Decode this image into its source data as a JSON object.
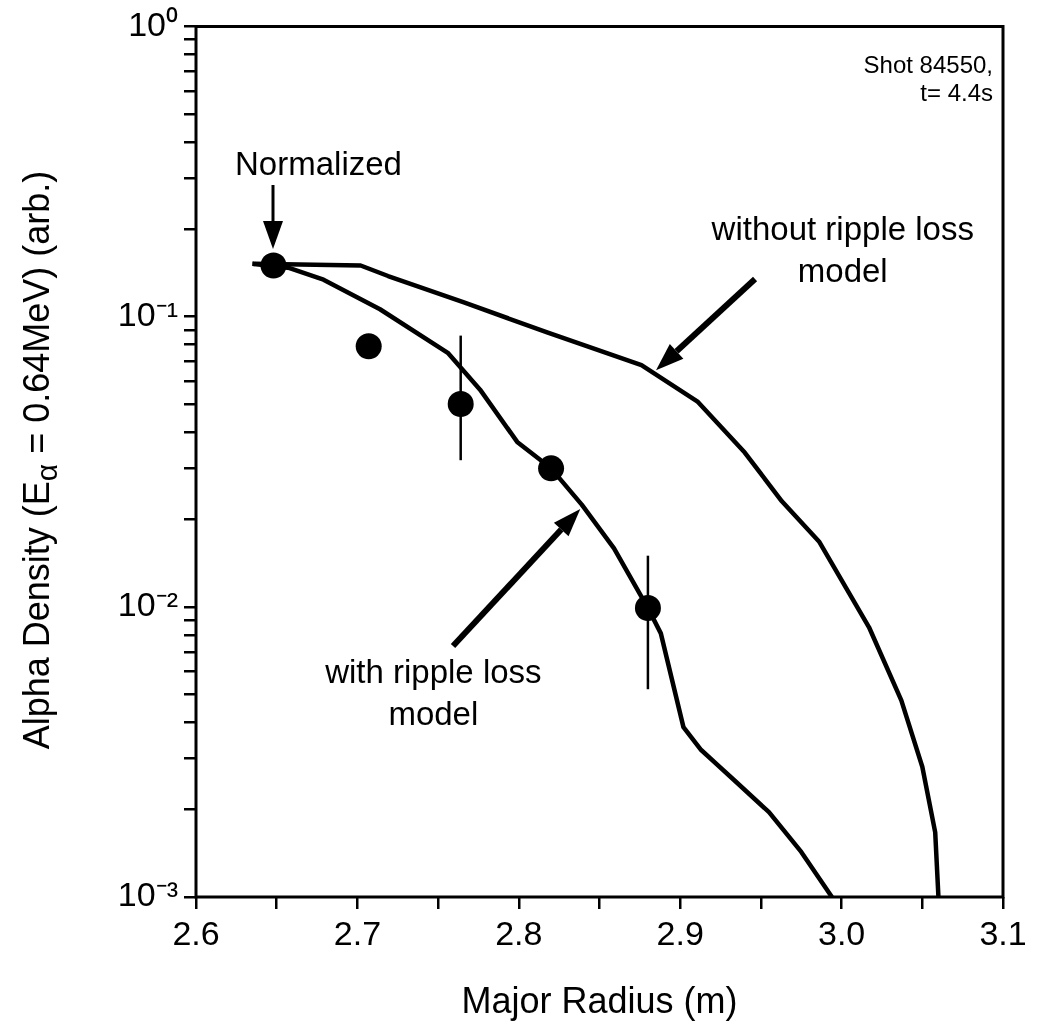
{
  "chart_data": {
    "type": "scatter",
    "xlabel": "Major Radius (m)",
    "ylabel": "Alpha Density (E$_{α}$ = 0.64MeV) (arb.)",
    "log": "y",
    "grid": false,
    "legend": false,
    "marker": "none",
    "xlim": [
      2.6,
      3.1
    ],
    "ylim": [
      0.001,
      1
    ],
    "xticks": [
      2.6,
      {
        "value": 2.65,
        "label": null
      },
      2.7,
      {
        "value": 2.75,
        "label": null
      },
      2.8,
      {
        "value": 2.85,
        "label": null
      },
      2.9,
      {
        "value": 2.95,
        "label": null
      },
      {
        "value": 3.0,
        "label": "3.0"
      },
      {
        "value": 3.05,
        "label": null
      },
      3.1
    ],
    "yticks": [
      {
        "value": 0.001,
        "label": "10⁻³"
      },
      {
        "value": 0.002,
        "label": null
      },
      {
        "value": 0.003,
        "label": null
      },
      {
        "value": 0.004,
        "label": null
      },
      {
        "value": 0.005,
        "label": null
      },
      {
        "value": 0.006,
        "label": null
      },
      {
        "value": 0.007,
        "label": null
      },
      {
        "value": 0.008,
        "label": null
      },
      {
        "value": 0.009,
        "label": null
      },
      {
        "value": 0.01,
        "label": "10⁻²"
      },
      {
        "value": 0.02,
        "label": null
      },
      {
        "value": 0.03,
        "label": null
      },
      {
        "value": 0.04,
        "label": null
      },
      {
        "value": 0.05,
        "label": null
      },
      {
        "value": 0.06,
        "label": null
      },
      {
        "value": 0.07,
        "label": null
      },
      {
        "value": 0.08,
        "label": null
      },
      {
        "value": 0.09,
        "label": null
      },
      {
        "value": 0.1,
        "label": "10⁻¹"
      },
      {
        "value": 0.2,
        "label": null
      },
      {
        "value": 0.3,
        "label": null
      },
      {
        "value": 0.4,
        "label": null
      },
      {
        "value": 0.5,
        "label": null
      },
      {
        "value": 0.6,
        "label": null
      },
      {
        "value": 0.7,
        "label": null
      },
      {
        "value": 0.8,
        "label": null
      },
      {
        "value": 0.9,
        "label": null
      },
      {
        "value": 1,
        "label": "10⁰"
      }
    ],
    "series": [
      {
        "marker": "circle",
        "color": "#000000",
        "x": [
          2.648,
          2.707,
          2.764,
          2.82,
          2.88
        ],
        "values": [
          0.15,
          0.079,
          0.05,
          0.03,
          0.0099
        ],
        "errors": [
          null,
          null,
          [
            0.032,
            0.086
          ],
          null,
          [
            0.0052,
            0.015
          ]
        ]
      },
      {
        "type": "line",
        "color": "#000000",
        "x": [
          2.635,
          2.658,
          2.679,
          2.714,
          2.756,
          2.776,
          2.799,
          2.82,
          2.839,
          2.859,
          2.88,
          2.888,
          2.902,
          2.913,
          2.933,
          2.955,
          2.975,
          2.994
        ],
        "values": [
          0.152,
          0.147,
          0.134,
          0.106,
          0.075,
          0.056,
          0.037,
          0.03,
          0.0225,
          0.0159,
          0.0099,
          0.0081,
          0.00385,
          0.00321,
          0.00254,
          0.00196,
          0.00143,
          0.001
        ]
      },
      {
        "type": "line",
        "color": "#000000",
        "x": [
          2.635,
          2.702,
          2.719,
          2.766,
          2.818,
          2.876,
          2.911,
          2.94,
          2.963,
          2.986,
          3.017,
          3.037,
          3.05,
          3.058,
          3.06
        ],
        "values": [
          0.152,
          0.15,
          0.138,
          0.112,
          0.088,
          0.068,
          0.0508,
          0.034,
          0.0231,
          0.0168,
          0.0085,
          0.00476,
          0.00281,
          0.00167,
          0.001
        ]
      }
    ],
    "annotations": [
      {
        "text": "Normalized",
        "x": 2.648,
        "y": 0.15
      },
      "without ripple loss model",
      "with ripple loss model",
      "Shot 84550, t= 4.4s"
    ]
  }
}
